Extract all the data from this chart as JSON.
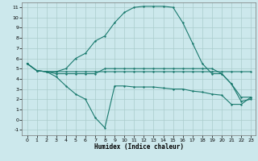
{
  "title": "",
  "xlabel": "Humidex (Indice chaleur)",
  "bg_color": "#cce8ec",
  "grid_color": "#aacccc",
  "line_color": "#1a7a6e",
  "xlim": [
    -0.5,
    23.5
  ],
  "ylim": [
    -1.5,
    11.5
  ],
  "xticks": [
    0,
    1,
    2,
    3,
    4,
    5,
    6,
    7,
    8,
    9,
    10,
    11,
    12,
    13,
    14,
    15,
    16,
    17,
    18,
    19,
    20,
    21,
    22,
    23
  ],
  "yticks": [
    -1,
    0,
    1,
    2,
    3,
    4,
    5,
    6,
    7,
    8,
    9,
    10,
    11
  ],
  "line1_x": [
    0,
    1,
    2,
    3,
    4,
    5,
    6,
    7,
    8,
    9,
    10,
    11,
    12,
    13,
    14,
    15,
    16,
    17,
    18,
    19,
    20,
    21,
    22,
    23
  ],
  "line1_y": [
    5.5,
    4.8,
    4.7,
    4.7,
    4.7,
    4.7,
    4.7,
    4.7,
    4.7,
    4.7,
    4.7,
    4.7,
    4.7,
    4.7,
    4.7,
    4.7,
    4.7,
    4.7,
    4.7,
    4.7,
    4.7,
    4.7,
    4.7,
    4.7
  ],
  "line2_x": [
    0,
    1,
    2,
    3,
    4,
    5,
    6,
    7,
    8,
    9,
    10,
    11,
    12,
    13,
    14,
    15,
    16,
    17,
    18,
    19,
    20,
    21,
    22,
    23
  ],
  "line2_y": [
    5.5,
    4.8,
    4.7,
    4.5,
    4.5,
    4.5,
    4.5,
    4.5,
    5.0,
    5.0,
    5.0,
    5.0,
    5.0,
    5.0,
    5.0,
    5.0,
    5.0,
    5.0,
    5.0,
    5.0,
    4.5,
    3.5,
    2.2,
    2.2
  ],
  "line3_x": [
    0,
    1,
    2,
    3,
    4,
    5,
    6,
    7,
    8,
    9,
    10,
    11,
    12,
    13,
    14,
    15,
    16,
    17,
    18,
    19,
    20,
    21,
    22,
    23
  ],
  "line3_y": [
    5.5,
    4.8,
    4.7,
    4.2,
    3.3,
    2.5,
    2.0,
    0.2,
    -0.8,
    3.3,
    3.3,
    3.2,
    3.2,
    3.2,
    3.1,
    3.0,
    3.0,
    2.8,
    2.7,
    2.5,
    2.4,
    1.5,
    1.5,
    2.2
  ],
  "line4_x": [
    0,
    1,
    2,
    3,
    4,
    5,
    6,
    7,
    8,
    9,
    10,
    11,
    12,
    13,
    14,
    15,
    16,
    17,
    18,
    19,
    20,
    21,
    22,
    23
  ],
  "line4_y": [
    5.5,
    4.8,
    4.7,
    4.7,
    5.0,
    6.0,
    6.5,
    7.7,
    8.2,
    9.5,
    10.5,
    11.0,
    11.1,
    11.1,
    11.1,
    11.0,
    9.5,
    7.5,
    5.5,
    4.5,
    4.5,
    3.5,
    1.8,
    2.0
  ]
}
